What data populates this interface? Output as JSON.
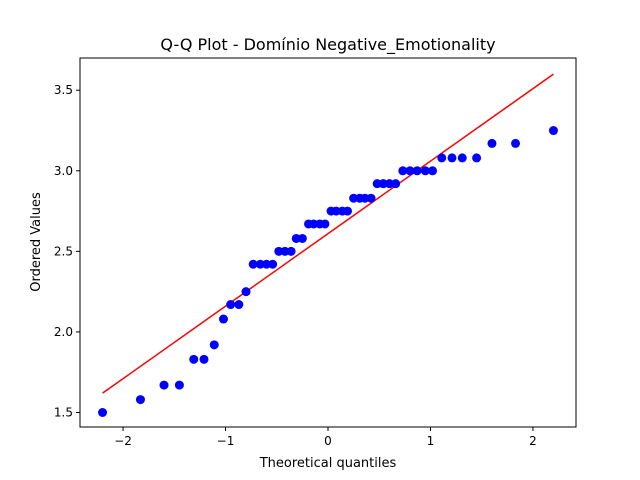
{
  "chart_data": {
    "type": "scatter",
    "title": "Q-Q Plot - Domínio Negative_Emotionality",
    "xlabel": "Theoretical quantiles",
    "ylabel": "Ordered Values",
    "xlim": [
      -2.42,
      2.42
    ],
    "ylim": [
      1.41,
      3.7
    ],
    "x_ticks": [
      -2,
      -1,
      0,
      1,
      2
    ],
    "x_tick_labels": [
      "−2",
      "−1",
      "0",
      "1",
      "2"
    ],
    "y_ticks": [
      1.5,
      2.0,
      2.5,
      3.0,
      3.5
    ],
    "y_tick_labels": [
      "1.5",
      "2.0",
      "2.5",
      "3.0",
      "3.5"
    ],
    "grid": false,
    "colors": {
      "points": "#0000ff",
      "fit_line": "#ff0000"
    },
    "series": [
      {
        "kind": "points",
        "x": [
          -2.2,
          -1.83,
          -1.6,
          -1.45,
          -1.31,
          -1.21,
          -1.11,
          -1.02,
          -0.95,
          -0.87,
          -0.8,
          -0.73,
          -0.66,
          -0.6,
          -0.54,
          -0.48,
          -0.42,
          -0.36,
          -0.31,
          -0.25,
          -0.19,
          -0.14,
          -0.08,
          -0.03,
          0.03,
          0.08,
          0.14,
          0.19,
          0.25,
          0.31,
          0.36,
          0.42,
          0.48,
          0.54,
          0.6,
          0.66,
          0.73,
          0.8,
          0.87,
          0.95,
          1.02,
          1.11,
          1.21,
          1.31,
          1.45,
          1.6,
          1.83,
          2.2
        ],
        "y": [
          1.5,
          1.58,
          1.67,
          1.67,
          1.83,
          1.83,
          1.92,
          2.08,
          2.17,
          2.17,
          2.25,
          2.42,
          2.42,
          2.42,
          2.42,
          2.5,
          2.5,
          2.5,
          2.58,
          2.58,
          2.67,
          2.67,
          2.67,
          2.67,
          2.75,
          2.75,
          2.75,
          2.75,
          2.83,
          2.83,
          2.83,
          2.83,
          2.92,
          2.92,
          2.92,
          2.92,
          3.0,
          3.0,
          3.0,
          3.0,
          3.0,
          3.08,
          3.08,
          3.08,
          3.08,
          3.17,
          3.17,
          3.25
        ]
      },
      {
        "kind": "line",
        "x": [
          -2.2,
          2.2
        ],
        "y": [
          1.62,
          3.6
        ]
      }
    ]
  }
}
